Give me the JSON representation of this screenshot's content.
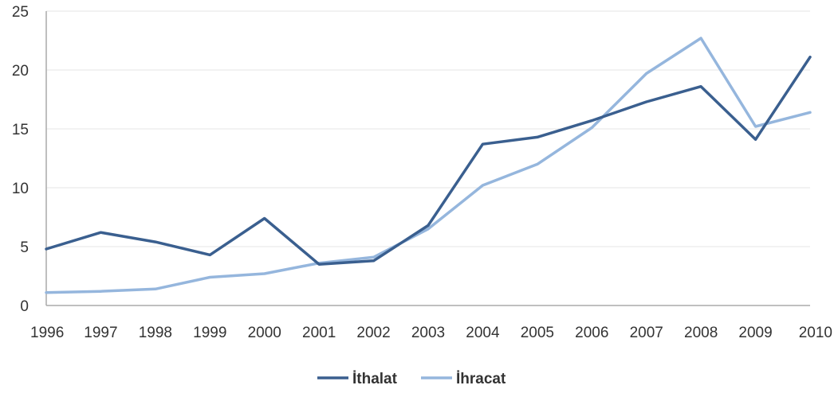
{
  "chart_data": {
    "type": "line",
    "title": "",
    "xlabel": "",
    "ylabel": "",
    "categories": [
      "1996",
      "1997",
      "1998",
      "1999",
      "2000",
      "2001",
      "2002",
      "2003",
      "2004",
      "2005",
      "2006",
      "2007",
      "2008",
      "2009",
      "2010"
    ],
    "yticks": [
      "0",
      "5",
      "10",
      "15",
      "20",
      "25"
    ],
    "ylim": [
      0,
      25
    ],
    "grid": true,
    "legend_position": "bottom",
    "series": [
      {
        "name": "İthalat",
        "color": "#3a5f8f",
        "values": [
          4.8,
          6.2,
          5.4,
          4.3,
          7.4,
          3.5,
          3.8,
          6.8,
          13.7,
          14.3,
          15.7,
          17.3,
          18.6,
          14.1,
          21.1
        ]
      },
      {
        "name": "İhracat",
        "color": "#95b6dd",
        "values": [
          1.1,
          1.2,
          1.4,
          2.4,
          2.7,
          3.6,
          4.1,
          6.5,
          10.2,
          12.0,
          15.1,
          19.7,
          22.7,
          15.2,
          16.4
        ]
      }
    ]
  }
}
